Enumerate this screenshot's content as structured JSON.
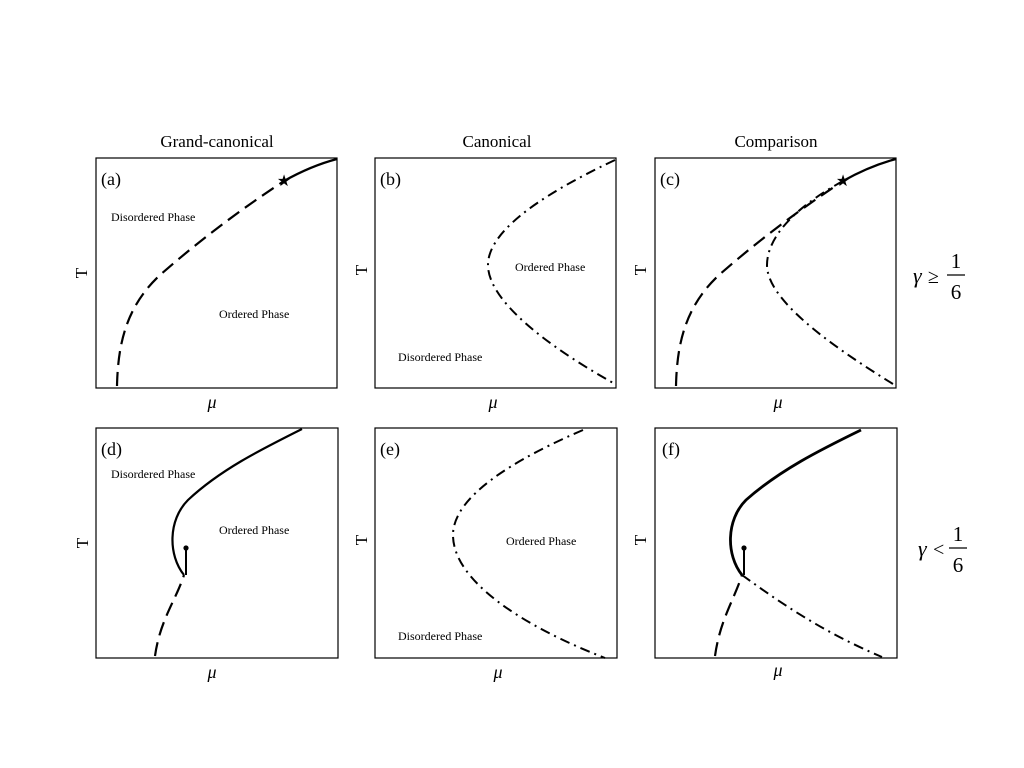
{
  "columns": {
    "grand_canonical": "Grand-canonical",
    "canonical": "Canonical",
    "comparison": "Comparison"
  },
  "panels": {
    "a": "(a)",
    "b": "(b)",
    "c": "(c)",
    "d": "(d)",
    "e": "(e)",
    "f": "(f)"
  },
  "regions": {
    "disordered": "Disordered Phase",
    "ordered": "Ordered Phase"
  },
  "axes": {
    "y": "T",
    "x": "μ"
  },
  "conditions": {
    "top": {
      "gamma": "γ",
      "op": "≥",
      "num": "1",
      "den": "6"
    },
    "bottom": {
      "gamma": "γ",
      "op": "<",
      "num": "1",
      "den": "6"
    }
  }
}
